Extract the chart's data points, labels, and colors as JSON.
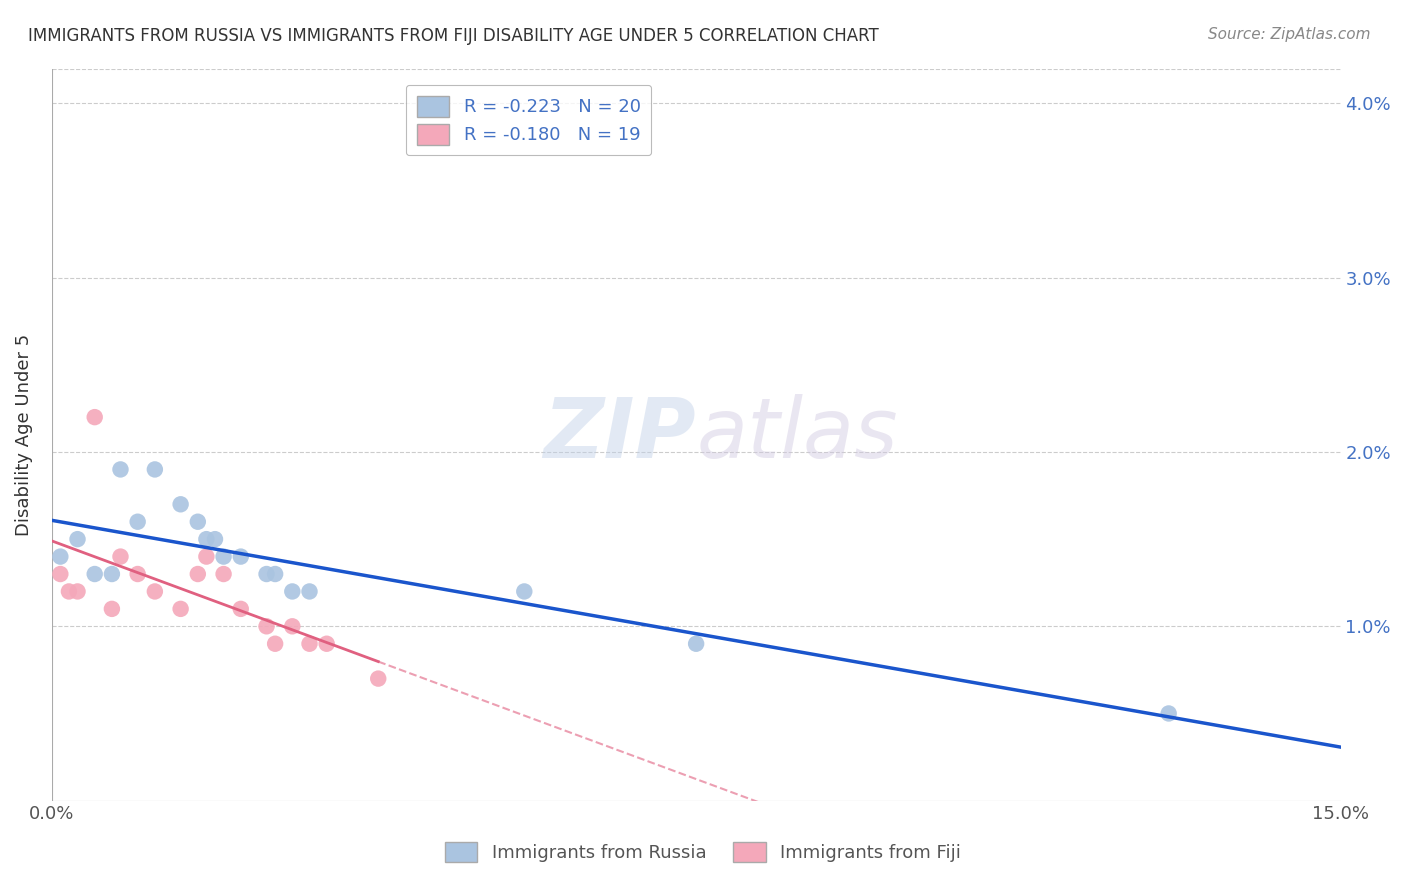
{
  "title": "IMMIGRANTS FROM RUSSIA VS IMMIGRANTS FROM FIJI DISABILITY AGE UNDER 5 CORRELATION CHART",
  "source": "Source: ZipAtlas.com",
  "ylabel": "Disability Age Under 5",
  "xmin": 0.0,
  "xmax": 0.15,
  "ymin": 0.0,
  "ymax": 0.042,
  "russia_R": -0.223,
  "russia_N": 20,
  "fiji_R": -0.18,
  "fiji_N": 19,
  "russia_color": "#aac4e0",
  "fiji_color": "#f4a8ba",
  "russia_line_color": "#1a55cc",
  "fiji_line_color": "#e06080",
  "watermark_zip": "ZIP",
  "watermark_atlas": "atlas",
  "legend_russia_label": "Immigrants from Russia",
  "legend_fiji_label": "Immigrants from Fiji",
  "background_color": "#ffffff",
  "grid_color": "#cccccc",
  "russia_x": [
    0.001,
    0.003,
    0.005,
    0.007,
    0.008,
    0.01,
    0.012,
    0.015,
    0.017,
    0.018,
    0.019,
    0.02,
    0.022,
    0.025,
    0.026,
    0.028,
    0.03,
    0.055,
    0.075,
    0.13
  ],
  "russia_y": [
    0.014,
    0.015,
    0.013,
    0.013,
    0.019,
    0.016,
    0.019,
    0.017,
    0.016,
    0.015,
    0.015,
    0.014,
    0.014,
    0.013,
    0.013,
    0.012,
    0.012,
    0.012,
    0.009,
    0.005
  ],
  "fiji_x": [
    0.001,
    0.002,
    0.003,
    0.005,
    0.007,
    0.008,
    0.01,
    0.012,
    0.015,
    0.017,
    0.018,
    0.02,
    0.022,
    0.025,
    0.026,
    0.028,
    0.03,
    0.032,
    0.038
  ],
  "fiji_y": [
    0.013,
    0.012,
    0.012,
    0.022,
    0.011,
    0.014,
    0.013,
    0.012,
    0.011,
    0.013,
    0.014,
    0.013,
    0.011,
    0.01,
    0.009,
    0.01,
    0.009,
    0.009,
    0.007
  ]
}
